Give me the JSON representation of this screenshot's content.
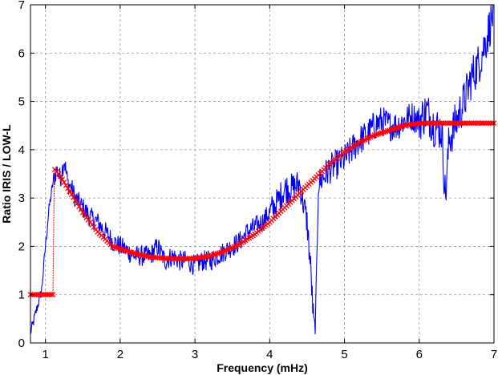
{
  "chart_data": {
    "type": "line",
    "title": "",
    "xlabel": "Frequency (mHz)",
    "ylabel": "Ratio IRIS / LOW-L",
    "xlim": [
      0.8,
      7
    ],
    "ylim": [
      0,
      7
    ],
    "xticks": [
      1,
      2,
      3,
      4,
      5,
      6,
      7
    ],
    "yticks": [
      0,
      1,
      2,
      3,
      4,
      5,
      6,
      7
    ],
    "grid": true,
    "legend": "none",
    "series": [
      {
        "style": "noisy-line",
        "color": "#0000ff",
        "x": [
          0.8,
          0.85,
          0.9,
          0.95,
          1.0,
          1.05,
          1.1,
          1.15,
          1.2,
          1.25,
          1.3,
          1.35,
          1.4,
          1.5,
          1.6,
          1.7,
          1.8,
          1.9,
          2.0,
          2.1,
          2.2,
          2.3,
          2.4,
          2.5,
          2.6,
          2.7,
          2.8,
          2.9,
          3.0,
          3.1,
          3.2,
          3.3,
          3.4,
          3.5,
          3.6,
          3.7,
          3.8,
          3.9,
          4.0,
          4.1,
          4.2,
          4.3,
          4.4,
          4.5,
          4.55,
          4.58,
          4.6,
          4.62,
          4.65,
          4.7,
          4.8,
          4.9,
          5.0,
          5.1,
          5.2,
          5.3,
          5.4,
          5.5,
          5.6,
          5.7,
          5.8,
          5.9,
          6.0,
          6.1,
          6.2,
          6.3,
          6.35,
          6.4,
          6.5,
          6.6,
          6.7,
          6.8,
          6.9,
          7.0
        ],
        "y": [
          0.2,
          0.5,
          0.8,
          1.1,
          2.0,
          2.8,
          3.3,
          3.6,
          3.4,
          3.8,
          3.3,
          3.2,
          3.0,
          2.8,
          2.6,
          2.5,
          2.3,
          2.1,
          2.0,
          1.9,
          1.8,
          1.8,
          1.8,
          2.0,
          1.7,
          1.8,
          1.7,
          1.7,
          1.6,
          1.7,
          1.7,
          1.8,
          1.9,
          2.0,
          2.1,
          2.3,
          2.4,
          2.5,
          2.7,
          2.9,
          3.2,
          3.2,
          3.3,
          2.5,
          1.5,
          0.6,
          0.2,
          0.8,
          3.3,
          3.4,
          3.6,
          3.7,
          3.8,
          4.0,
          4.2,
          4.3,
          4.5,
          4.6,
          4.5,
          4.5,
          4.6,
          4.7,
          4.6,
          4.8,
          4.5,
          4.4,
          3.0,
          4.2,
          4.6,
          5.0,
          5.5,
          5.8,
          6.3,
          6.9
        ]
      },
      {
        "style": "model-marker-line",
        "color": "#ff0000",
        "x": [
          0.8,
          0.9,
          1.0,
          1.05,
          1.1,
          1.12,
          1.2,
          1.3,
          1.4,
          1.5,
          1.6,
          1.7,
          1.8,
          1.9,
          2.0,
          2.2,
          2.4,
          2.6,
          2.8,
          3.0,
          3.2,
          3.4,
          3.6,
          3.8,
          4.0,
          4.2,
          4.4,
          4.6,
          4.8,
          5.0,
          5.2,
          5.4,
          5.6,
          5.8,
          6.0,
          6.1,
          6.5,
          7.0
        ],
        "y": [
          1.0,
          1.0,
          1.0,
          1.0,
          1.0,
          3.6,
          3.45,
          3.2,
          2.95,
          2.7,
          2.5,
          2.3,
          2.15,
          2.0,
          1.95,
          1.85,
          1.78,
          1.75,
          1.74,
          1.75,
          1.8,
          1.9,
          2.05,
          2.25,
          2.5,
          2.8,
          3.1,
          3.4,
          3.7,
          3.95,
          4.15,
          4.3,
          4.4,
          4.5,
          4.55,
          4.55,
          4.55,
          4.55
        ]
      }
    ]
  }
}
